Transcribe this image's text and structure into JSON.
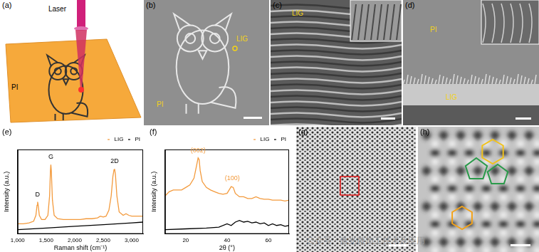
{
  "panels": {
    "a": {
      "label": "(a)",
      "texts": [
        "Laser",
        "PI"
      ]
    },
    "b": {
      "label": "(b)",
      "texts": [
        "LIG",
        "PI"
      ]
    },
    "c": {
      "label": "(c)",
      "texts": [
        "LIG"
      ]
    },
    "d": {
      "label": "(d)",
      "texts": [
        "PI",
        "LIG"
      ]
    },
    "e": {
      "label": "(e)"
    },
    "f": {
      "label": "(f)"
    },
    "g": {
      "label": "(g)"
    },
    "h": {
      "label": "(h)"
    }
  },
  "watermark": "公众号 · 激光微加工技术及应用",
  "chart_data": [
    {
      "type": "line",
      "x_label": "Raman shift (cm⁻¹)",
      "y_label": "Intensity (a.u.)",
      "xlim": [
        1000,
        3200
      ],
      "xticks": [
        {
          "value": 1000,
          "label": "1,000"
        },
        {
          "value": 1500,
          "label": "1,500"
        },
        {
          "value": 2000,
          "label": "2,000"
        },
        {
          "value": 2500,
          "label": "2,500"
        },
        {
          "value": 3000,
          "label": "3,000"
        }
      ],
      "ylim": [
        0,
        1
      ],
      "yticks": [],
      "tick_labels": "x",
      "grid": false,
      "legend": "upper right",
      "series": [
        {
          "name": "LIG",
          "color": "#f39a3c",
          "x": [
            1000,
            1100,
            1200,
            1280,
            1320,
            1340,
            1350,
            1360,
            1380,
            1420,
            1480,
            1530,
            1560,
            1575,
            1582,
            1590,
            1610,
            1640,
            1700,
            1800,
            1900,
            2000,
            2100,
            2200,
            2300,
            2400,
            2450,
            2500,
            2550,
            2600,
            2640,
            2670,
            2690,
            2700,
            2715,
            2740,
            2780,
            2850,
            2900,
            2950,
            3000,
            3100,
            3200
          ],
          "values": [
            0.12,
            0.12,
            0.13,
            0.15,
            0.22,
            0.34,
            0.38,
            0.34,
            0.22,
            0.17,
            0.17,
            0.22,
            0.45,
            0.75,
            0.82,
            0.75,
            0.4,
            0.22,
            0.18,
            0.17,
            0.17,
            0.17,
            0.17,
            0.18,
            0.18,
            0.19,
            0.21,
            0.2,
            0.21,
            0.28,
            0.45,
            0.68,
            0.76,
            0.77,
            0.7,
            0.45,
            0.26,
            0.22,
            0.24,
            0.22,
            0.21,
            0.21,
            0.21
          ]
        },
        {
          "name": "PI",
          "color": "#000000",
          "x": [
            1000,
            1500,
            2000,
            2500,
            3000,
            3200
          ],
          "values": [
            0.05,
            0.07,
            0.09,
            0.11,
            0.13,
            0.14
          ]
        }
      ],
      "annotations": [
        {
          "text": "D",
          "x": 1350,
          "y": 0.43,
          "color": "#000000"
        },
        {
          "text": "G",
          "x": 1582,
          "y": 0.87,
          "color": "#000000"
        },
        {
          "text": "2D",
          "x": 2700,
          "y": 0.82,
          "color": "#000000"
        }
      ]
    },
    {
      "type": "line",
      "x_label": "2θ (°)",
      "y_label": "Intensity (a.u.)",
      "xlim": [
        10,
        70
      ],
      "xticks": [
        20,
        40,
        60
      ],
      "ylim": [
        0,
        1
      ],
      "yticks": [],
      "tick_labels": "x",
      "grid": false,
      "legend": "upper right",
      "series": [
        {
          "name": "LIG",
          "color": "#f39a3c",
          "x": [
            10,
            12,
            14,
            16,
            18,
            20,
            22,
            24,
            25,
            26,
            26.5,
            27,
            28,
            30,
            32,
            34,
            36,
            38,
            40,
            42,
            43,
            44,
            46,
            48,
            50,
            52,
            54,
            56,
            58,
            60,
            62,
            64,
            66,
            68,
            70
          ],
          "values": [
            0.45,
            0.5,
            0.52,
            0.52,
            0.52,
            0.55,
            0.58,
            0.66,
            0.78,
            0.9,
            0.88,
            0.75,
            0.62,
            0.55,
            0.52,
            0.5,
            0.48,
            0.47,
            0.48,
            0.56,
            0.55,
            0.48,
            0.44,
            0.44,
            0.42,
            0.42,
            0.44,
            0.42,
            0.41,
            0.41,
            0.4,
            0.4,
            0.4,
            0.39,
            0.4
          ]
        },
        {
          "name": "PI",
          "color": "#000000",
          "x": [
            10,
            20,
            30,
            36,
            40,
            42,
            44,
            46,
            48,
            50,
            52,
            54,
            56,
            58,
            60,
            62,
            64,
            66,
            68,
            70
          ],
          "values": [
            0.05,
            0.06,
            0.07,
            0.08,
            0.12,
            0.1,
            0.14,
            0.16,
            0.14,
            0.15,
            0.13,
            0.14,
            0.12,
            0.13,
            0.1,
            0.12,
            0.1,
            0.11,
            0.09,
            0.1
          ]
        }
      ],
      "annotations": [
        {
          "text": "(002)",
          "x": 26,
          "y": 0.95,
          "color": "#f39a3c"
        },
        {
          "text": "(100)",
          "x": 42.5,
          "y": 0.62,
          "color": "#f39a3c"
        }
      ]
    }
  ]
}
